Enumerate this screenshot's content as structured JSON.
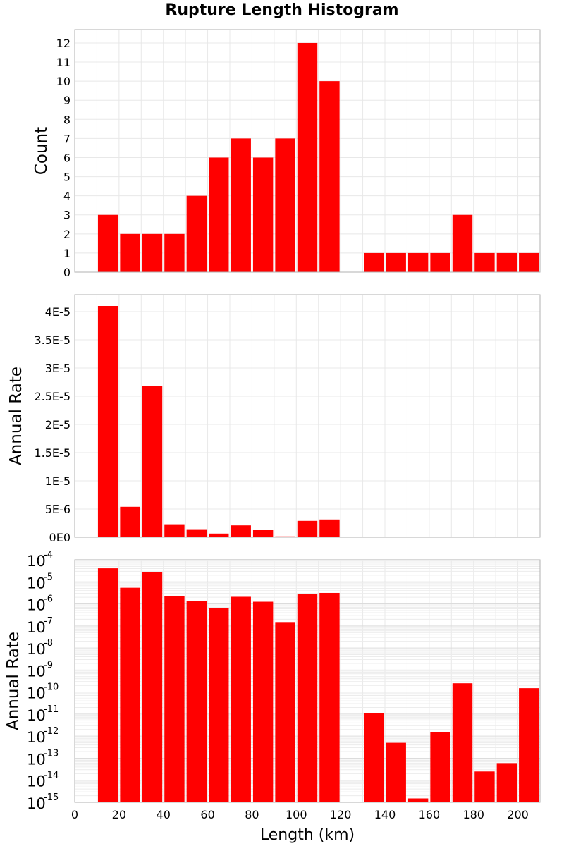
{
  "title": "Rupture Length Histogram",
  "chart_data": {
    "type": "bar",
    "xlabel": "Length (km)",
    "xlim": [
      0,
      210
    ],
    "xticks": [
      0,
      20,
      40,
      60,
      80,
      100,
      120,
      140,
      160,
      180,
      200
    ],
    "bin_width": 10,
    "bar_color": "#ff0000",
    "grid": true,
    "panels": [
      {
        "ylabel": "Count",
        "scale": "linear",
        "ylim": [
          0,
          12.7
        ],
        "yticks": [
          0,
          1,
          2,
          3,
          4,
          5,
          6,
          7,
          8,
          9,
          10,
          11,
          12
        ],
        "ytick_labels": [
          "0",
          "1",
          "2",
          "3",
          "4",
          "5",
          "6",
          "7",
          "8",
          "9",
          "10",
          "11",
          "12"
        ],
        "bars": [
          {
            "x": 15,
            "y": 3
          },
          {
            "x": 25,
            "y": 2
          },
          {
            "x": 35,
            "y": 2
          },
          {
            "x": 45,
            "y": 2
          },
          {
            "x": 55,
            "y": 4
          },
          {
            "x": 65,
            "y": 6
          },
          {
            "x": 75,
            "y": 7
          },
          {
            "x": 85,
            "y": 6
          },
          {
            "x": 95,
            "y": 7
          },
          {
            "x": 105,
            "y": 12
          },
          {
            "x": 115,
            "y": 10
          },
          {
            "x": 135,
            "y": 1
          },
          {
            "x": 145,
            "y": 1
          },
          {
            "x": 155,
            "y": 1
          },
          {
            "x": 165,
            "y": 1
          },
          {
            "x": 175,
            "y": 3
          },
          {
            "x": 185,
            "y": 1
          },
          {
            "x": 195,
            "y": 1
          },
          {
            "x": 205,
            "y": 1
          }
        ]
      },
      {
        "ylabel": "Annual Rate",
        "scale": "linear",
        "ylim": [
          0,
          4.3e-05
        ],
        "yticks": [
          0,
          5e-06,
          1e-05,
          1.5e-05,
          2e-05,
          2.5e-05,
          3e-05,
          3.5e-05,
          4e-05
        ],
        "ytick_labels": [
          "0E0",
          "5E-6",
          "1E-5",
          "1.5E-5",
          "2E-5",
          "2.5E-5",
          "3E-5",
          "3.5E-5",
          "4E-5"
        ],
        "bars": [
          {
            "x": 15,
            "y": 4.1e-05
          },
          {
            "x": 25,
            "y": 5.4e-06
          },
          {
            "x": 35,
            "y": 2.68e-05
          },
          {
            "x": 45,
            "y": 2.3e-06
          },
          {
            "x": 55,
            "y": 1.3e-06
          },
          {
            "x": 65,
            "y": 6.5e-07
          },
          {
            "x": 75,
            "y": 2.1e-06
          },
          {
            "x": 85,
            "y": 1.25e-06
          },
          {
            "x": 95,
            "y": 1.5e-07
          },
          {
            "x": 105,
            "y": 2.9e-06
          },
          {
            "x": 115,
            "y": 3.15e-06
          },
          {
            "x": 135,
            "y": 1.1e-11
          },
          {
            "x": 145,
            "y": 5e-13
          },
          {
            "x": 155,
            "y": 1.5e-15
          },
          {
            "x": 165,
            "y": 1.5e-12
          },
          {
            "x": 175,
            "y": 2.5e-10
          },
          {
            "x": 185,
            "y": 2.5e-14
          },
          {
            "x": 195,
            "y": 6e-14
          },
          {
            "x": 205,
            "y": 1.5e-10
          }
        ]
      },
      {
        "ylabel": "Annual Rate",
        "scale": "log",
        "ylim": [
          1e-15,
          0.0001
        ],
        "ytick_exponents": [
          -4,
          -5,
          -6,
          -7,
          -8,
          -9,
          -10,
          -11,
          -12,
          -13,
          -14,
          -15
        ],
        "ytick_base": "10",
        "bars": [
          {
            "x": 15,
            "y": 4.1e-05
          },
          {
            "x": 25,
            "y": 5.4e-06
          },
          {
            "x": 35,
            "y": 2.68e-05
          },
          {
            "x": 45,
            "y": 2.3e-06
          },
          {
            "x": 55,
            "y": 1.3e-06
          },
          {
            "x": 65,
            "y": 6.5e-07
          },
          {
            "x": 75,
            "y": 2.1e-06
          },
          {
            "x": 85,
            "y": 1.25e-06
          },
          {
            "x": 95,
            "y": 1.5e-07
          },
          {
            "x": 105,
            "y": 2.9e-06
          },
          {
            "x": 115,
            "y": 3.15e-06
          },
          {
            "x": 135,
            "y": 1.1e-11
          },
          {
            "x": 145,
            "y": 5e-13
          },
          {
            "x": 155,
            "y": 1.5e-15
          },
          {
            "x": 165,
            "y": 1.5e-12
          },
          {
            "x": 175,
            "y": 2.5e-10
          },
          {
            "x": 185,
            "y": 2.5e-14
          },
          {
            "x": 195,
            "y": 6e-14
          },
          {
            "x": 205,
            "y": 1.5e-10
          }
        ]
      }
    ]
  }
}
